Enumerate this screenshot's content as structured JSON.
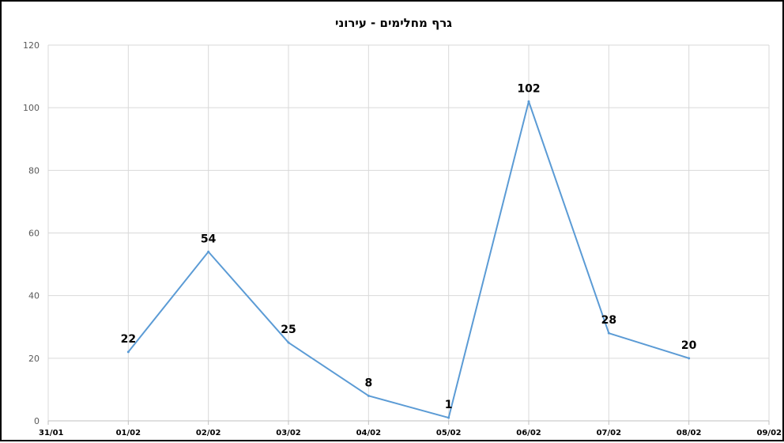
{
  "chart_data": {
    "type": "line",
    "title": "גרף מחלימים - עירוני",
    "x_ticks": [
      "31/01",
      "01/02",
      "02/02",
      "03/02",
      "04/02",
      "05/02",
      "06/02",
      "07/02",
      "08/02",
      "09/02"
    ],
    "y_ticks": [
      "0",
      "20",
      "40",
      "60",
      "80",
      "100",
      "120"
    ],
    "ylim": [
      0,
      120
    ],
    "x": [
      "01/02",
      "02/02",
      "03/02",
      "04/02",
      "05/02",
      "06/02",
      "07/02",
      "08/02"
    ],
    "series": [
      {
        "values": [
          22,
          54,
          25,
          8,
          1,
          102,
          28,
          20
        ],
        "color": "#5B9BD5"
      }
    ],
    "data_labels": [
      "22",
      "54",
      "25",
      "8",
      "1",
      "102",
      "28",
      "20"
    ],
    "grid": true,
    "legend": "none"
  }
}
